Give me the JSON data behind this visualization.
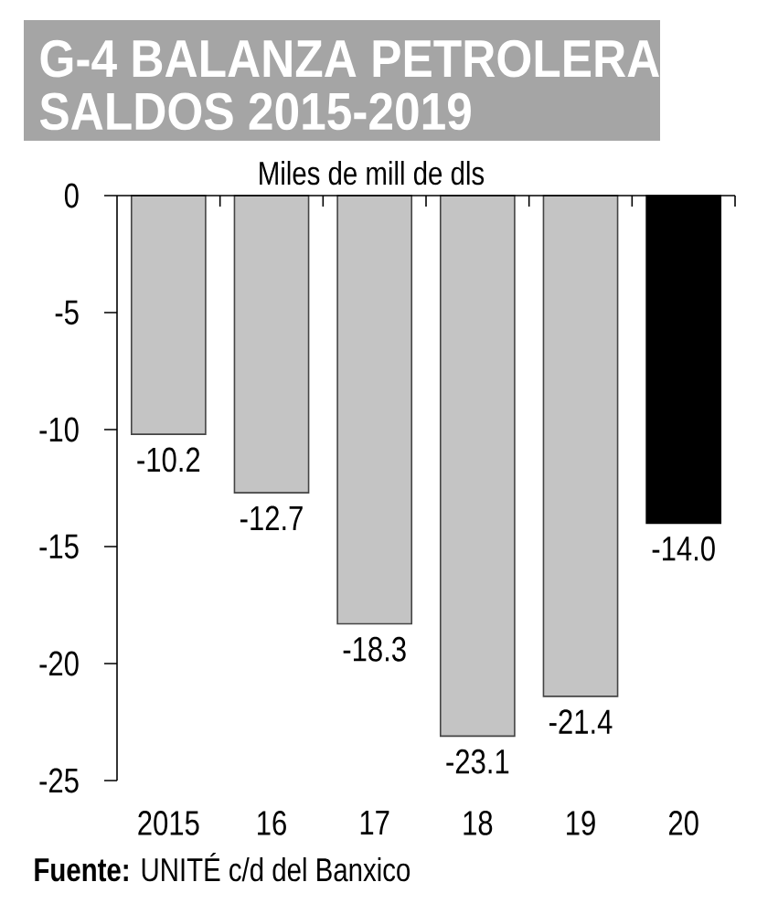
{
  "chart_data": {
    "type": "bar",
    "title": "G-4 BALANZA PETROLERA SALDOS 2015-2019",
    "subtitle": "Miles de mill de dls",
    "categories": [
      "2015",
      "16",
      "17",
      "18",
      "19",
      "20"
    ],
    "values": [
      -10.2,
      -12.7,
      -18.3,
      -23.1,
      -21.4,
      -14.0
    ],
    "value_labels": [
      "-10.2",
      "-12.7",
      "-18.3",
      "-23.1",
      "-21.4",
      "-14.0"
    ],
    "colors": [
      "#c4c4c4",
      "#c4c4c4",
      "#c4c4c4",
      "#c4c4c4",
      "#c4c4c4",
      "#000000"
    ],
    "ylim": [
      -25,
      0
    ],
    "yticks": [
      -25,
      -20,
      -15,
      -10,
      -5,
      0
    ],
    "annotations": [
      "**Fuente:** UNITÉ c/d del Banxico"
    ]
  }
}
